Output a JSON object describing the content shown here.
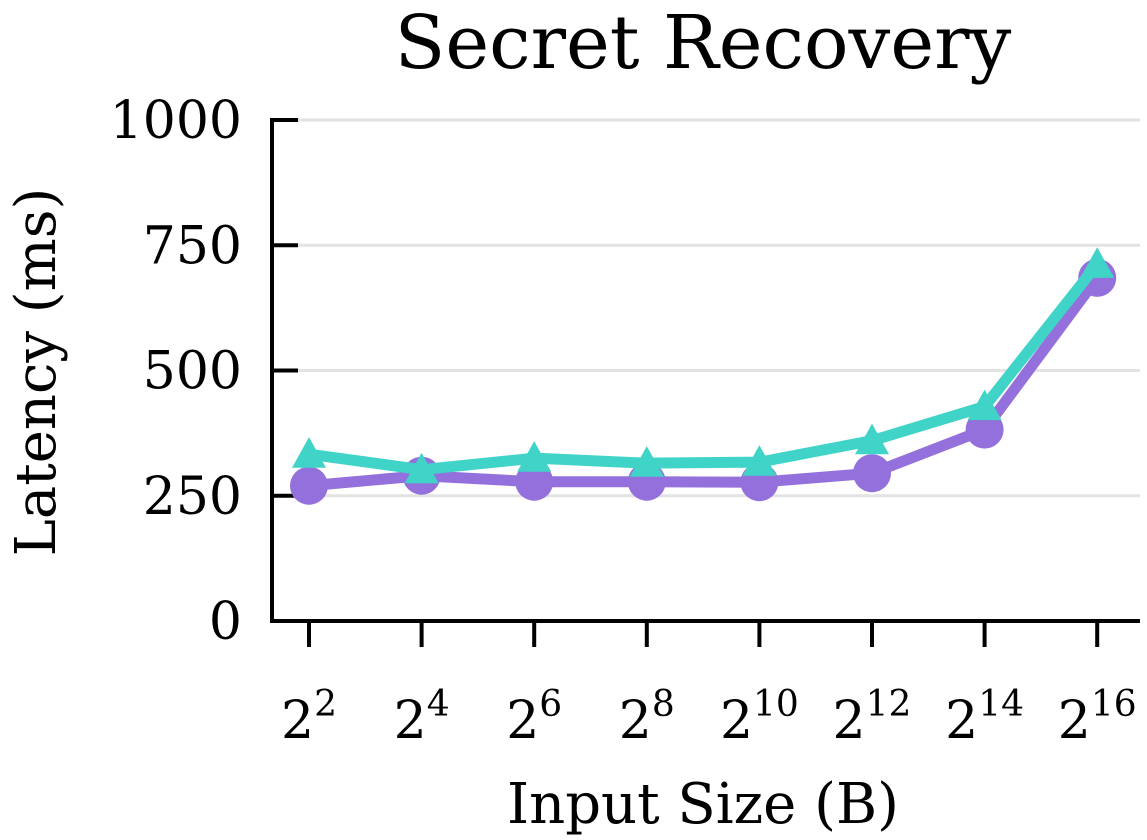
{
  "chart_data": {
    "type": "line",
    "title": "Secret Recovery",
    "xlabel": "Input Size (B)",
    "ylabel": "Latency (ms)",
    "x_ticks": [
      {
        "base": "2",
        "exp": "2"
      },
      {
        "base": "2",
        "exp": "4"
      },
      {
        "base": "2",
        "exp": "6"
      },
      {
        "base": "2",
        "exp": "8"
      },
      {
        "base": "2",
        "exp": "10"
      },
      {
        "base": "2",
        "exp": "12"
      },
      {
        "base": "2",
        "exp": "14"
      },
      {
        "base": "2",
        "exp": "16"
      }
    ],
    "x": [
      4,
      16,
      64,
      256,
      1024,
      4096,
      16384,
      65536
    ],
    "x_scale": "log2",
    "ylim": [
      0,
      1000
    ],
    "y_ticks": [
      0,
      250,
      500,
      750,
      1000
    ],
    "grid": "horizontal",
    "series": [
      {
        "marker": "circle",
        "color": "#9370DB",
        "values": [
          270,
          290,
          278,
          278,
          277,
          295,
          382,
          685
        ]
      },
      {
        "marker": "triangle",
        "color": "#40D3C8",
        "values": [
          333,
          302,
          325,
          315,
          317,
          360,
          428,
          712
        ]
      }
    ]
  }
}
